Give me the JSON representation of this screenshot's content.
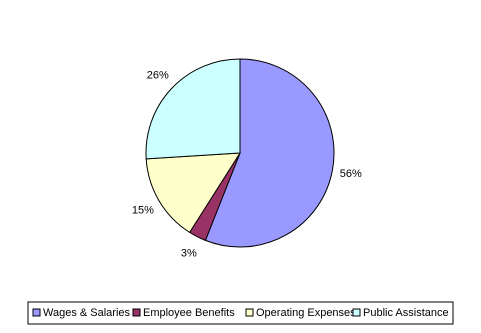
{
  "chart_data": {
    "type": "pie",
    "categories": [
      "Wages & Salaries",
      "Employee Benefits",
      "Operating Expenses",
      "Public Assistance"
    ],
    "values": [
      56,
      3,
      15,
      26
    ],
    "value_labels": [
      "56%",
      "3%",
      "15%",
      "26%"
    ],
    "colors": [
      "#9999ff",
      "#993366",
      "#ffffcc",
      "#ccffff"
    ],
    "legend": "bottom"
  }
}
